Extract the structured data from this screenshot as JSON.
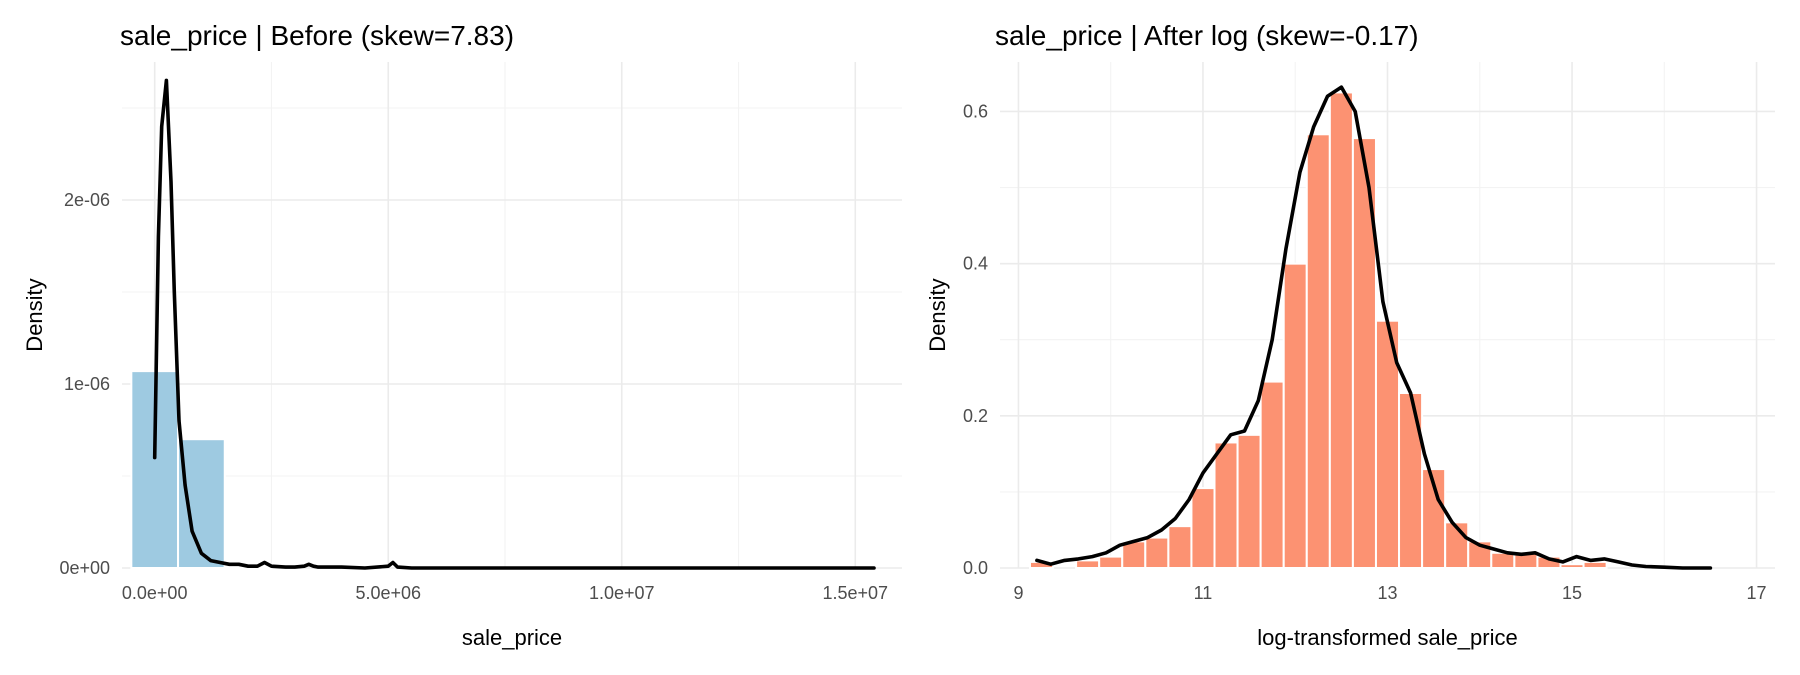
{
  "chart_data": [
    {
      "type": "histogram",
      "title": "sale_price | Before (skew=7.83)",
      "xlabel": "sale_price",
      "ylabel": "Density",
      "xlim": [
        -700000,
        16000000
      ],
      "ylim": [
        0,
        2.75e-06
      ],
      "x_ticks": [
        0,
        5000000,
        10000000,
        15000000
      ],
      "x_tick_labels": [
        "0.0e+00",
        "5.0e+06",
        "1.0e+07",
        "1.5e+07"
      ],
      "y_ticks": [
        0,
        1e-06,
        2e-06
      ],
      "y_tick_labels": [
        "0e+00",
        "1e-06",
        "2e-06"
      ],
      "bar_color": "#9ecae1",
      "line_color": "#000000",
      "bins": [
        {
          "x0": -500000,
          "x1": 500000,
          "density": 1.07e-06
        },
        {
          "x0": 500000,
          "x1": 1500000,
          "density": 7e-07
        },
        {
          "x0": 1500000,
          "x1": 2500000,
          "density": 1e-08
        }
      ],
      "density_line": {
        "x": [
          0,
          80000,
          150000,
          250000,
          350000,
          420000,
          520000,
          650000,
          800000,
          1000000,
          1200000,
          1400000,
          1600000,
          1800000,
          2000000,
          2200000,
          2350000,
          2500000,
          2800000,
          3000000,
          3200000,
          3300000,
          3400000,
          3500000,
          4000000,
          4500000,
          5000000,
          5100000,
          5200000,
          5500000,
          6000000,
          8000000,
          10000000,
          12000000,
          14000000,
          15400000
        ],
        "y": [
          6e-07,
          1.8e-06,
          2.4e-06,
          2.65e-06,
          2.1e-06,
          1.5e-06,
          8e-07,
          4.5e-07,
          2e-07,
          8e-08,
          4e-08,
          3e-08,
          2e-08,
          2e-08,
          1e-08,
          1e-08,
          3e-08,
          1e-08,
          5e-09,
          5e-09,
          1e-08,
          2e-08,
          1e-08,
          5e-09,
          5e-09,
          0,
          1e-08,
          3e-08,
          5e-09,
          0,
          0,
          0,
          0,
          0,
          0,
          0
        ]
      }
    },
    {
      "type": "histogram",
      "title": "sale_price | After log (skew=-0.17)",
      "xlabel": "log-transformed sale_price",
      "ylabel": "Density",
      "xlim": [
        8.8,
        17.2
      ],
      "ylim": [
        0,
        0.665
      ],
      "x_ticks": [
        9,
        11,
        13,
        15,
        17
      ],
      "x_tick_labels": [
        "9",
        "11",
        "13",
        "15",
        "17"
      ],
      "y_ticks": [
        0,
        0.2,
        0.4,
        0.6
      ],
      "y_tick_labels": [
        "0.0",
        "0.2",
        "0.4",
        "0.6"
      ],
      "bar_color": "#fc9272",
      "line_color": "#000000",
      "bin_width": 0.25,
      "bin_start": 9.125,
      "bin_densities": [
        0.008,
        0.0,
        0.01,
        0.015,
        0.035,
        0.04,
        0.055,
        0.105,
        0.165,
        0.175,
        0.245,
        0.4,
        0.57,
        0.625,
        0.565,
        0.325,
        0.23,
        0.13,
        0.06,
        0.035,
        0.02,
        0.02,
        0.015,
        0.005,
        0.008,
        0.0,
        0.0,
        0.0,
        0.0
      ],
      "density_line": {
        "x": [
          9.2,
          9.35,
          9.5,
          9.65,
          9.8,
          9.95,
          10.1,
          10.25,
          10.4,
          10.55,
          10.7,
          10.85,
          11.0,
          11.15,
          11.3,
          11.45,
          11.6,
          11.75,
          11.9,
          12.05,
          12.2,
          12.35,
          12.5,
          12.65,
          12.8,
          12.95,
          13.1,
          13.25,
          13.4,
          13.55,
          13.7,
          13.85,
          14.0,
          14.15,
          14.3,
          14.45,
          14.6,
          14.75,
          14.9,
          15.05,
          15.2,
          15.35,
          15.5,
          15.65,
          15.8,
          16.0,
          16.2,
          16.5
        ],
        "y": [
          0.01,
          0.005,
          0.01,
          0.012,
          0.015,
          0.02,
          0.03,
          0.035,
          0.04,
          0.05,
          0.065,
          0.09,
          0.125,
          0.15,
          0.175,
          0.18,
          0.22,
          0.3,
          0.42,
          0.52,
          0.58,
          0.62,
          0.632,
          0.6,
          0.5,
          0.35,
          0.27,
          0.23,
          0.15,
          0.09,
          0.06,
          0.04,
          0.03,
          0.025,
          0.02,
          0.018,
          0.02,
          0.012,
          0.008,
          0.015,
          0.01,
          0.012,
          0.008,
          0.004,
          0.002,
          0.001,
          0.0,
          0.0
        ]
      }
    }
  ]
}
